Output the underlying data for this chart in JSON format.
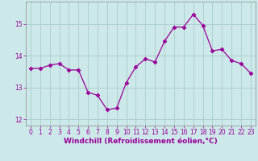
{
  "x": [
    0,
    1,
    2,
    3,
    4,
    5,
    6,
    7,
    8,
    9,
    10,
    11,
    12,
    13,
    14,
    15,
    16,
    17,
    18,
    19,
    20,
    21,
    22,
    23
  ],
  "y": [
    13.6,
    13.6,
    13.7,
    13.75,
    13.55,
    13.55,
    12.85,
    12.75,
    12.3,
    12.35,
    13.15,
    13.65,
    13.9,
    13.8,
    14.45,
    14.9,
    14.9,
    15.3,
    14.95,
    14.15,
    14.2,
    13.85,
    13.75,
    13.45
  ],
  "line_color": "#990099",
  "marker": "D",
  "marker_size": 2.5,
  "bg_color": "#cce8e8",
  "grid_color": "#aacccc",
  "xlabel": "Windchill (Refroidissement éolien,°C)",
  "ylim": [
    11.8,
    15.7
  ],
  "yticks": [
    12,
    13,
    14,
    15
  ],
  "xlim": [
    -0.5,
    23.5
  ],
  "xticks": [
    0,
    1,
    2,
    3,
    4,
    5,
    6,
    7,
    8,
    9,
    10,
    11,
    12,
    13,
    14,
    15,
    16,
    17,
    18,
    19,
    20,
    21,
    22,
    23
  ],
  "tick_color": "#990099",
  "label_color": "#990099",
  "tick_fontsize": 5.5,
  "xlabel_fontsize": 6.5,
  "spine_color": "#888888"
}
